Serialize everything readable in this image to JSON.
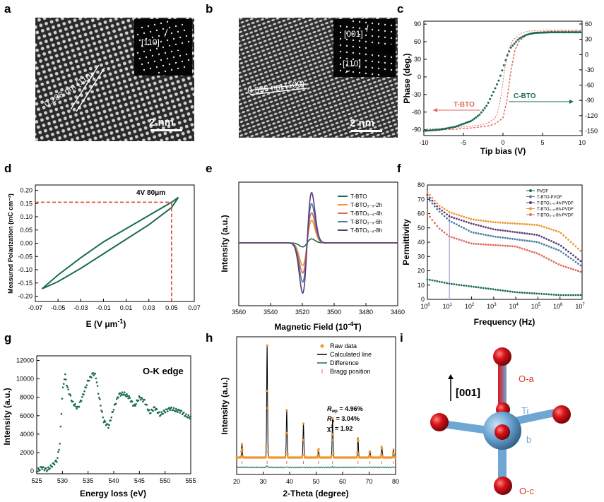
{
  "panels": {
    "a": {
      "label": "a",
      "spacing": "0.288 nm (110)",
      "inset": "[110]",
      "scalebar": "2 nm"
    },
    "b": {
      "label": "b",
      "spacing": "0.396 nm (100)",
      "inset_top": "[001]",
      "inset_bot": "[110]",
      "scalebar": "2 nm"
    },
    "c": {
      "label": "c",
      "xlabel": "Tip bias (V)",
      "ylabel": "Phase (deg.)",
      "tbto": "T-BTO",
      "cbto": "C-BTO",
      "xticks": [
        "-10",
        "-5",
        "0",
        "5",
        "10"
      ],
      "yticks_left": [
        "90",
        "60",
        "30",
        "0",
        "-30",
        "-60",
        "-90"
      ],
      "yticks_right": [
        "60",
        "30",
        "0",
        "-30",
        "-60",
        "-90",
        "-120",
        "-150"
      ]
    },
    "d": {
      "label": "d",
      "xlabel": "E (V μm",
      "xlabel_sup": "-1",
      "xlabel_end": ")",
      "ylabel": "Measured Polarization (mC cm⁻²)",
      "annotation": "4V 80μm",
      "xticks": [
        "-0.07",
        "-0.05",
        "-0.03",
        "-0.01",
        "0.01",
        "0.03",
        "0.05",
        "0.07"
      ],
      "yticks": [
        "0.20",
        "0.15",
        "0.10",
        "0.05",
        "0.00",
        "-0.05",
        "-0.10",
        "-0.15",
        "-0.20"
      ]
    },
    "e": {
      "label": "e",
      "xlabel": "Magnetic Field (10",
      "xlabel_sup": "-4",
      "xlabel_end": "T)",
      "ylabel": "Intensity (a.u.)",
      "xticks": [
        "3560",
        "3540",
        "3520",
        "3500",
        "3480",
        "3460"
      ],
      "legend": [
        "T-BTO",
        "T-BTO₃₋ₓ-2h",
        "T-BTO₃₋ₓ-4h",
        "T-BTO₃₋ₓ-6h",
        "T-BTO₃₋ₓ-8h"
      ]
    },
    "f": {
      "label": "f",
      "xlabel": "Frequency (Hz)",
      "ylabel": "Permittivity",
      "yticks": [
        "80",
        "70",
        "60",
        "50",
        "40",
        "30",
        "20",
        "10",
        "0"
      ],
      "xticks": [
        "10",
        "10",
        "10",
        "10",
        "10",
        "10",
        "10",
        "10"
      ],
      "xexp": [
        "0",
        "1",
        "2",
        "3",
        "4",
        "5",
        "6",
        "7"
      ],
      "legend": [
        "PVDF",
        "T-BTO-PVDF",
        "T-BTO₃₋ₓ-4h-PVDF",
        "T-BTO₃₋ₓ-6h-PVDF",
        "T-BTO₃₋ₓ-8h-PVDF"
      ]
    },
    "g": {
      "label": "g",
      "xlabel": "Energy loss (eV)",
      "ylabel": "Intensity (a.u.)",
      "title": "O-K edge",
      "xticks": [
        "525",
        "530",
        "535",
        "540",
        "545",
        "550",
        "555"
      ],
      "yticks": [
        "12000",
        "10000",
        "8000",
        "6000",
        "4000",
        "2000",
        "0"
      ]
    },
    "h": {
      "label": "h",
      "xlabel": "2-Theta (degree)",
      "ylabel": "Intensity (a.u.)",
      "xticks": [
        "20",
        "30",
        "40",
        "50",
        "60",
        "70",
        "80"
      ],
      "legend": [
        "Raw data",
        "Calculated line",
        "Difference",
        "Bragg position"
      ],
      "rwp_sym": "R",
      "rwp_sub": "wp",
      "rwp_val": " = 4.96%",
      "rp_sym": "R",
      "rp_sub": "p",
      "rp_val": " = 3.04%",
      "chi_sym": "χ",
      "chi_sup": "2",
      "chi_val": " = 1.92"
    },
    "i": {
      "label": "i",
      "direction": "[001]",
      "oa": "O-a",
      "ti": "Ti",
      "b": "b",
      "oc": "O-c"
    }
  },
  "colors": {
    "green": "#1a6b50",
    "salmon": "#e06b5c",
    "orange": "#f0962f",
    "blue": "#4a7fa0",
    "purple": "#5c3a7a",
    "red": "#e03c2a",
    "ti": "#6fa6d4",
    "oxygen": "#d8141b"
  },
  "chart_data": [
    {
      "panel": "c",
      "type": "line",
      "title": "",
      "xlabel": "Tip bias (V)",
      "ylabel": "Phase (deg.)",
      "xlim": [
        -10,
        10
      ],
      "ylim": [
        -100,
        95
      ],
      "series": [
        {
          "name": "C-BTO phase",
          "x": [
            -10,
            -8,
            -6,
            -4,
            -3,
            -2,
            -1,
            -0.5,
            0,
            0.5,
            1,
            2,
            3,
            4,
            6,
            8,
            10
          ],
          "y": [
            -92,
            -90,
            -85,
            -75,
            -65,
            -48,
            -20,
            -5,
            15,
            35,
            50,
            65,
            72,
            75,
            76,
            76,
            76
          ]
        },
        {
          "name": "T-BTO phase",
          "x": [
            -10,
            -8,
            -6,
            -4,
            -2,
            -1,
            0,
            0.5,
            1,
            1.5,
            2,
            3,
            4,
            6,
            8,
            10
          ],
          "y": [
            -92,
            -90,
            -89,
            -87,
            -84,
            -80,
            -70,
            -40,
            10,
            45,
            60,
            72,
            76,
            78,
            78,
            78
          ]
        }
      ]
    },
    {
      "panel": "d",
      "type": "line",
      "title": "",
      "xlabel": "E (V μm-1)",
      "ylabel": "Measured Polarization (mC cm-2)",
      "xlim": [
        -0.07,
        0.07
      ],
      "ylim": [
        -0.22,
        0.22
      ],
      "series": [
        {
          "name": "upper",
          "x": [
            -0.064,
            -0.05,
            -0.03,
            -0.01,
            0.01,
            0.03,
            0.05,
            0.056
          ],
          "y": [
            -0.172,
            -0.12,
            -0.055,
            0.005,
            0.055,
            0.105,
            0.155,
            0.173
          ]
        },
        {
          "name": "lower",
          "x": [
            -0.064,
            -0.05,
            -0.03,
            -0.01,
            0.01,
            0.03,
            0.05,
            0.056
          ],
          "y": [
            -0.172,
            -0.145,
            -0.095,
            -0.04,
            0.015,
            0.07,
            0.135,
            0.173
          ]
        }
      ],
      "marker": {
        "x": 0.05,
        "y": 0.155
      }
    },
    {
      "panel": "e",
      "type": "line",
      "title": "",
      "xlabel": "Magnetic Field (10-4 T)",
      "ylabel": "Intensity (a.u.)",
      "xlim": [
        3560,
        3460
      ],
      "series": [
        {
          "name": "T-BTO",
          "amp": 0.08
        },
        {
          "name": "T-BTO3-x-2h",
          "amp": 0.45
        },
        {
          "name": "T-BTO3-x-4h",
          "amp": 0.6
        },
        {
          "name": "T-BTO3-x-6h",
          "amp": 0.78
        },
        {
          "name": "T-BTO3-x-8h",
          "amp": 1.0
        }
      ],
      "center": 3517
    },
    {
      "panel": "f",
      "type": "line",
      "title": "",
      "xlabel": "Frequency (Hz)",
      "ylabel": "Permittivity",
      "xlim": [
        0,
        7
      ],
      "ylim": [
        0,
        80
      ],
      "series": [
        {
          "name": "PVDF",
          "x": [
            0,
            1,
            2,
            3,
            4,
            5,
            6,
            7
          ],
          "y": [
            14,
            11,
            9,
            7,
            5,
            4,
            3,
            3
          ]
        },
        {
          "name": "T-BTO-PVDF",
          "x": [
            0,
            0.5,
            1,
            2,
            3,
            4,
            5,
            6,
            7
          ],
          "y": [
            71,
            62,
            55,
            47,
            44,
            42,
            40,
            34,
            23
          ]
        },
        {
          "name": "T-BTO3-x-4h-PVDF",
          "x": [
            0,
            0.5,
            1,
            2,
            3,
            4,
            5,
            6,
            7
          ],
          "y": [
            73,
            64,
            58,
            53,
            49,
            47,
            45,
            38,
            26
          ]
        },
        {
          "name": "T-BTO3-x-6h-PVDF",
          "x": [
            0,
            0.5,
            1,
            2,
            3,
            4,
            5,
            6,
            7
          ],
          "y": [
            75,
            66,
            61,
            56,
            54,
            53,
            52,
            47,
            33
          ]
        },
        {
          "name": "T-BTO3-x-8h-PVDF",
          "x": [
            0,
            0.5,
            1,
            2,
            3,
            4,
            5,
            6,
            7
          ],
          "y": [
            60,
            50,
            44,
            39,
            38,
            37,
            32,
            24,
            19
          ]
        }
      ]
    },
    {
      "panel": "g",
      "type": "scatter",
      "title": "O-K edge",
      "xlabel": "Energy loss (eV)",
      "ylabel": "Intensity (a.u.)",
      "xlim": [
        525,
        555
      ],
      "ylim": [
        -300,
        12500
      ],
      "x": [
        525,
        526,
        527,
        528,
        529,
        529.5,
        530,
        530.5,
        531,
        532,
        533,
        534,
        535,
        536,
        536.5,
        537,
        538,
        539,
        540,
        541,
        542,
        543,
        544,
        545,
        546,
        547,
        548,
        549,
        550,
        551,
        552,
        553,
        554,
        555
      ],
      "y": [
        0,
        400,
        100,
        600,
        1200,
        3000,
        8500,
        10500,
        9000,
        7400,
        6800,
        8200,
        9800,
        10600,
        10400,
        8500,
        5500,
        4800,
        6800,
        8300,
        8400,
        8000,
        7000,
        8000,
        7600,
        6300,
        6900,
        6100,
        6500,
        6800,
        6600,
        6500,
        6000,
        5800
      ]
    },
    {
      "panel": "h",
      "type": "line",
      "title": "",
      "xlabel": "2-Theta (degree)",
      "ylabel": "Intensity (a.u.)",
      "xlim": [
        20,
        80
      ],
      "peaks": [
        {
          "x": 22,
          "h": 0.12
        },
        {
          "x": 31.5,
          "h": 1.0
        },
        {
          "x": 38.9,
          "h": 0.42
        },
        {
          "x": 45.2,
          "h": 0.3
        },
        {
          "x": 50.9,
          "h": 0.08
        },
        {
          "x": 56.2,
          "h": 0.35
        },
        {
          "x": 65.8,
          "h": 0.18
        },
        {
          "x": 70.3,
          "h": 0.06
        },
        {
          "x": 74.8,
          "h": 0.1
        },
        {
          "x": 79.2,
          "h": 0.07
        }
      ],
      "legend": [
        "Raw data",
        "Calculated line",
        "Difference",
        "Bragg position"
      ],
      "Rwp": "4.96%",
      "Rp": "3.04%",
      "chi2": "1.92"
    }
  ]
}
